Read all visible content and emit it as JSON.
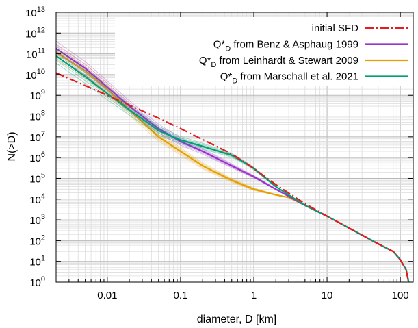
{
  "chart_data": {
    "type": "line",
    "title": "",
    "xlabel": "diameter, D [km]",
    "ylabel": "N(>D)",
    "x_scale": "log",
    "y_scale": "log",
    "xlim": [
      0.002,
      150
    ],
    "ylim": [
      1,
      10000000000000.0
    ],
    "grid": true,
    "legend_position": "top-right",
    "x_ticks": [
      {
        "value": 0.01,
        "label": "0.01"
      },
      {
        "value": 0.1,
        "label": "0.1"
      },
      {
        "value": 1,
        "label": "1"
      },
      {
        "value": 10,
        "label": "10"
      },
      {
        "value": 100,
        "label": "100"
      }
    ],
    "y_ticks": [
      {
        "value": 1,
        "base": "10",
        "exp": "0"
      },
      {
        "value": 10,
        "base": "10",
        "exp": "1"
      },
      {
        "value": 100,
        "base": "10",
        "exp": "2"
      },
      {
        "value": 1000,
        "base": "10",
        "exp": "3"
      },
      {
        "value": 10000,
        "base": "10",
        "exp": "4"
      },
      {
        "value": 100000,
        "base": "10",
        "exp": "5"
      },
      {
        "value": 1000000,
        "base": "10",
        "exp": "6"
      },
      {
        "value": 10000000,
        "base": "10",
        "exp": "7"
      },
      {
        "value": 100000000,
        "base": "10",
        "exp": "8"
      },
      {
        "value": 1000000000,
        "base": "10",
        "exp": "9"
      },
      {
        "value": 10000000000,
        "base": "10",
        "exp": "10"
      },
      {
        "value": 100000000000,
        "base": "10",
        "exp": "11"
      },
      {
        "value": 1000000000000,
        "base": "10",
        "exp": "12"
      },
      {
        "value": 10000000000000,
        "base": "10",
        "exp": "13"
      }
    ],
    "series": [
      {
        "id": "initial",
        "name": "initial SFD",
        "color": "#e41a1c",
        "style": "dash-dot",
        "x": [
          0.002,
          0.01,
          0.05,
          0.1,
          0.5,
          1,
          2,
          5,
          10,
          20,
          50,
          80,
          100,
          120,
          130
        ],
        "y": [
          12000000000.0,
          1000000000.0,
          80000000.0,
          25000000.0,
          1500000.0,
          300000.0,
          50000.0,
          6000,
          1500,
          400,
          70,
          30,
          12,
          4,
          1
        ]
      },
      {
        "id": "benz",
        "name": "Q*D from Benz & Asphaug 1999",
        "legend_main": "Q*",
        "legend_sub": "D",
        "legend_rest": " from Benz & Asphaug 1999",
        "color": "#9933cc",
        "style": "band",
        "x": [
          0.002,
          0.005,
          0.01,
          0.02,
          0.05,
          0.1,
          0.2,
          0.5,
          1,
          2,
          5,
          10,
          20,
          50,
          80,
          100,
          120,
          130
        ],
        "y": [
          180000000000.0,
          20000000000.0,
          2500000000.0,
          300000000.0,
          25000000.0,
          6000000.0,
          2000000.0,
          400000.0,
          120000.0,
          30000.0,
          5000,
          1500,
          400,
          70,
          30,
          12,
          4,
          1
        ]
      },
      {
        "id": "leinhardt",
        "name": "Q*D from Leinhardt & Stewart 2009",
        "legend_main": "Q*",
        "legend_sub": "D",
        "legend_rest": " from Leinhardt & Stewart 2009",
        "color": "#e69f00",
        "style": "band",
        "x": [
          0.002,
          0.005,
          0.01,
          0.02,
          0.05,
          0.1,
          0.2,
          0.5,
          1,
          2,
          3,
          5,
          10,
          20,
          50,
          80,
          100,
          120,
          130
        ],
        "y": [
          120000000000.0,
          15000000000.0,
          2000000000.0,
          200000000.0,
          10000000.0,
          2000000.0,
          400000.0,
          80000.0,
          30000.0,
          16000.0,
          12000.0,
          5000,
          1500,
          400,
          70,
          30,
          12,
          4,
          1
        ]
      },
      {
        "id": "marschall",
        "name": "Q*D from Marschall et al. 2021",
        "legend_main": "Q*",
        "legend_sub": "D",
        "legend_rest": " from Marschall et al. 2021",
        "color": "#009e73",
        "style": "band",
        "x": [
          0.002,
          0.005,
          0.01,
          0.02,
          0.05,
          0.1,
          0.2,
          0.5,
          0.8,
          1,
          2,
          5,
          10,
          20,
          50,
          80,
          100,
          120,
          130
        ],
        "y": [
          80000000000.0,
          8000000000.0,
          1200000000.0,
          200000000.0,
          20000000.0,
          7000000.0,
          3500000.0,
          1300000.0,
          500000.0,
          300000.0,
          40000.0,
          5000,
          1500,
          400,
          70,
          30,
          12,
          4,
          1
        ]
      }
    ]
  }
}
